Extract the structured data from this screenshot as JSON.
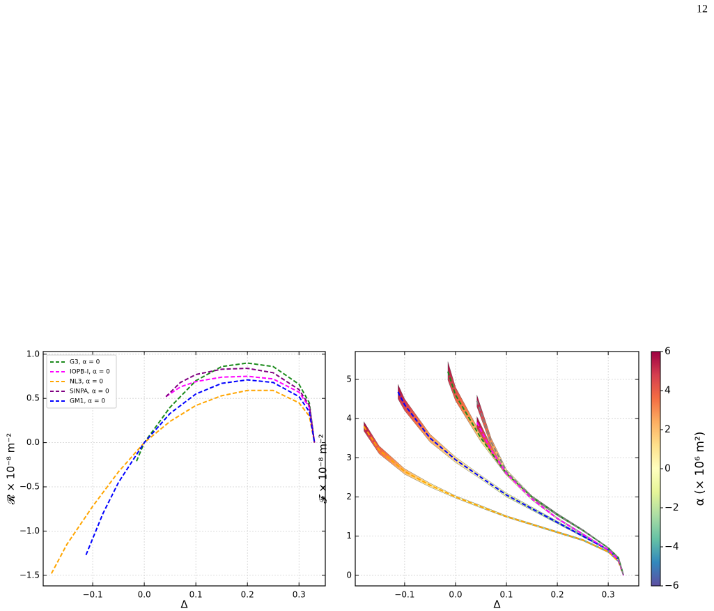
{
  "page_number": "12",
  "chart_data": [
    {
      "type": "line",
      "xlabel": "Δ",
      "ylabel": "𝓡 × 10⁻⁸ m⁻²",
      "xlim": [
        -0.196,
        0.351
      ],
      "ylim": [
        -1.62,
        1.03
      ],
      "xticks": [
        {
          "value": -0.1,
          "label": "−0.1"
        },
        {
          "value": 0.0,
          "label": "0.0"
        },
        0.1,
        0.2,
        0.3
      ],
      "yticks": [
        {
          "value": -1.5,
          "label": "−1.5"
        },
        {
          "value": -1.0,
          "label": "−1.0"
        },
        {
          "value": -0.5,
          "label": "−0.5"
        },
        {
          "value": 0.0,
          "label": "0.0"
        },
        0.5,
        {
          "value": 1.0,
          "label": "1.0"
        }
      ],
      "grid": true,
      "legend": "upper left",
      "series": [
        {
          "name": "G3, α = 0",
          "color": "#1a8a1a",
          "x": [
            -0.015,
            0,
            0.05,
            0.1,
            0.15,
            0.2,
            0.25,
            0.3,
            0.32,
            0.33
          ],
          "values": [
            -0.21,
            0,
            0.4,
            0.7,
            0.86,
            0.9,
            0.86,
            0.66,
            0.45,
            0.0
          ]
        },
        {
          "name": "IOPB-I, α = 0",
          "color": "#ff00ff",
          "x": [
            0.042,
            0.07,
            0.1,
            0.15,
            0.2,
            0.25,
            0.3,
            0.32,
            0.33
          ],
          "values": [
            0.52,
            0.63,
            0.69,
            0.74,
            0.75,
            0.72,
            0.57,
            0.4,
            0.0
          ]
        },
        {
          "name": "NL3, α = 0",
          "color": "#ffa500",
          "x": [
            -0.18,
            -0.15,
            -0.1,
            -0.05,
            0,
            0.05,
            0.1,
            0.15,
            0.2,
            0.25,
            0.3,
            0.32,
            0.33
          ],
          "values": [
            -1.48,
            -1.15,
            -0.72,
            -0.33,
            0,
            0.24,
            0.42,
            0.53,
            0.59,
            0.59,
            0.45,
            0.3,
            0.0
          ]
        },
        {
          "name": "SINPA, α = 0",
          "color": "#800080",
          "x": [
            0.042,
            0.07,
            0.1,
            0.15,
            0.2,
            0.25,
            0.3,
            0.32,
            0.33
          ],
          "values": [
            0.52,
            0.68,
            0.77,
            0.83,
            0.84,
            0.79,
            0.6,
            0.42,
            0.0
          ]
        },
        {
          "name": "GM1, α = 0",
          "color": "#0000ff",
          "x": [
            -0.113,
            -0.08,
            -0.05,
            0,
            0.05,
            0.1,
            0.15,
            0.2,
            0.25,
            0.3,
            0.32,
            0.33
          ],
          "values": [
            -1.27,
            -0.8,
            -0.45,
            0,
            0.33,
            0.55,
            0.67,
            0.71,
            0.68,
            0.52,
            0.35,
            0.0
          ]
        }
      ]
    },
    {
      "type": "band",
      "xlabel": "Δ",
      "ylabel": "𝓕 × 10⁻⁸ m⁻²",
      "xlim": [
        -0.197,
        0.36
      ],
      "ylim": [
        -0.27,
        5.71
      ],
      "xticks": [
        {
          "value": -0.1,
          "label": "−0.1"
        },
        {
          "value": 0.0,
          "label": "0.0"
        },
        0.1,
        0.2,
        0.3
      ],
      "yticks": [
        0,
        1,
        2,
        3,
        4,
        5
      ],
      "grid": true,
      "colorbar": {
        "label": "α (× 10⁶ m²)",
        "lim": [
          -6,
          6
        ],
        "ticks": [
          {
            "value": -6,
            "label": "−6"
          },
          {
            "value": -4,
            "label": "−4"
          },
          {
            "value": -2,
            "label": "−2"
          },
          0,
          2,
          4,
          6
        ],
        "colors": [
          "#5e4fa2",
          "#3288bd",
          "#66c2a5",
          "#abdda4",
          "#e6f598",
          "#ffffbf",
          "#fee08b",
          "#fdae61",
          "#f46d43",
          "#d53e4f",
          "#9e0142"
        ]
      },
      "series": [
        {
          "color": "#ffa500",
          "x": [
            -0.18,
            -0.15,
            -0.1,
            -0.05,
            0,
            0.05,
            0.1,
            0.15,
            0.2,
            0.25,
            0.3,
            0.32,
            0.33
          ],
          "values": [
            3.8,
            3.2,
            2.65,
            2.3,
            2.0,
            1.75,
            1.5,
            1.3,
            1.1,
            0.9,
            0.6,
            0.35,
            0.0
          ],
          "lower": [
            3.68,
            3.1,
            2.58,
            2.25,
            1.97,
            1.72,
            1.48,
            1.28,
            1.08,
            0.88,
            0.58,
            0.34,
            0.0
          ],
          "upper": [
            3.92,
            3.3,
            2.72,
            2.35,
            2.03,
            1.78,
            1.52,
            1.32,
            1.12,
            0.92,
            0.62,
            0.36,
            0.0
          ]
        },
        {
          "color": "#0000ff",
          "x": [
            -0.113,
            -0.1,
            -0.05,
            0,
            0.05,
            0.1,
            0.15,
            0.2,
            0.25,
            0.3,
            0.32,
            0.33
          ],
          "values": [
            4.68,
            4.35,
            3.5,
            2.95,
            2.5,
            2.05,
            1.7,
            1.35,
            1.0,
            0.65,
            0.4,
            0.0
          ],
          "lower": [
            4.5,
            4.2,
            3.4,
            2.88,
            2.45,
            2.0,
            1.66,
            1.32,
            0.98,
            0.63,
            0.39,
            0.0
          ],
          "upper": [
            4.87,
            4.5,
            3.6,
            3.02,
            2.55,
            2.1,
            1.74,
            1.38,
            1.02,
            0.67,
            0.41,
            0.0
          ]
        },
        {
          "color": "#1a8a1a",
          "x": [
            -0.015,
            0,
            0.05,
            0.1,
            0.15,
            0.2,
            0.25,
            0.3,
            0.32,
            0.33
          ],
          "values": [
            5.2,
            4.6,
            3.5,
            2.6,
            2.0,
            1.55,
            1.15,
            0.7,
            0.45,
            0.0
          ],
          "lower": [
            4.98,
            4.45,
            3.4,
            2.55,
            1.97,
            1.52,
            1.13,
            0.69,
            0.44,
            0.0
          ],
          "upper": [
            5.45,
            4.8,
            3.6,
            2.65,
            2.03,
            1.58,
            1.17,
            0.71,
            0.46,
            0.0
          ]
        },
        {
          "color": "#ff00ff",
          "x": [
            0.042,
            0.07,
            0.1,
            0.15,
            0.2,
            0.25,
            0.3,
            0.32,
            0.33
          ],
          "values": [
            3.9,
            3.2,
            2.6,
            1.95,
            1.45,
            1.05,
            0.65,
            0.4,
            0.0
          ],
          "lower": [
            3.75,
            3.1,
            2.55,
            1.92,
            1.43,
            1.03,
            0.64,
            0.39,
            0.0
          ],
          "upper": [
            4.05,
            3.3,
            2.65,
            1.98,
            1.47,
            1.07,
            0.66,
            0.41,
            0.0
          ]
        },
        {
          "color": "#808080",
          "x": [
            0.042,
            0.07,
            0.1,
            0.15,
            0.2,
            0.25,
            0.3,
            0.32,
            0.33
          ],
          "values": [
            4.45,
            3.4,
            2.65,
            2.0,
            1.55,
            1.15,
            0.7,
            0.45,
            0.0
          ],
          "lower": [
            4.3,
            3.3,
            2.6,
            1.97,
            1.53,
            1.13,
            0.69,
            0.44,
            0.0
          ],
          "upper": [
            4.6,
            3.5,
            2.7,
            2.03,
            1.57,
            1.17,
            0.71,
            0.46,
            0.0
          ]
        }
      ]
    }
  ]
}
